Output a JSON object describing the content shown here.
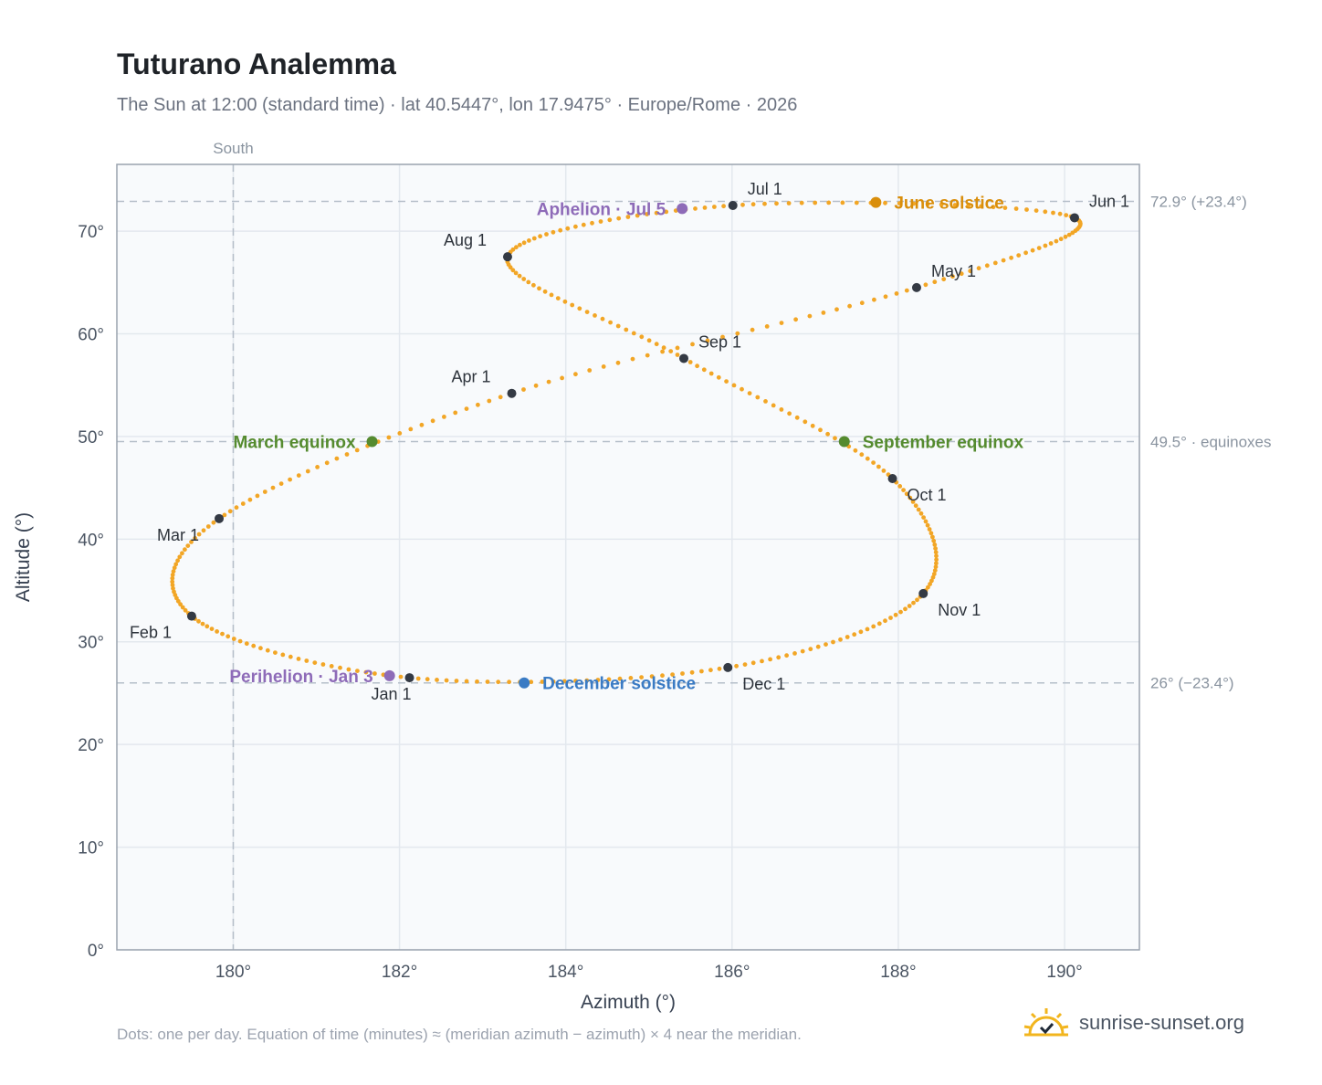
{
  "title": "Tuturano Analemma",
  "subtitle": "The Sun at 12:00 (standard time) · lat 40.5447°, lon 17.9475° · Europe/Rome · 2026",
  "footnote": "Dots: one per day. Equation of time (minutes) ≈ (meridian azimuth − azimuth) × 4 near the meridian.",
  "brand": {
    "name": "sunrise-sunset.org",
    "icon": "sun-horizon-icon"
  },
  "colors": {
    "path": "#f2a626",
    "month_marker": "#343a44",
    "solstice_june": "#d98e0b",
    "solstice_december": "#3a7bc4",
    "equinox": "#558b2f",
    "apsis": "#8e6bb8",
    "guide_line": "#b5bec9",
    "plot_background": "#f8fafc",
    "axis_frame": "#9aa3ae"
  },
  "chart_data": {
    "type": "scatter",
    "xlabel": "Azimuth (°)",
    "ylabel": "Altitude (°)",
    "xlim": [
      178.6,
      190.9
    ],
    "ylim": [
      0,
      76.5
    ],
    "x_ticks": [
      "180°",
      "182°",
      "184°",
      "186°",
      "188°",
      "190°"
    ],
    "x_tick_values": [
      180,
      182,
      184,
      186,
      188,
      190
    ],
    "y_ticks": [
      "0°",
      "10°",
      "20°",
      "30°",
      "40°",
      "50°",
      "60°",
      "70°"
    ],
    "y_tick_values": [
      0,
      10,
      20,
      30,
      40,
      50,
      60,
      70
    ],
    "grid": true,
    "meridian": {
      "label": "South",
      "azimuth": 180
    },
    "reference_lines": [
      {
        "altitude": 72.9,
        "label": "72.9° (+23.4°)"
      },
      {
        "altitude": 49.5,
        "label": "49.5° · equinoxes"
      },
      {
        "altitude": 26.0,
        "label": "26° (−23.4°)"
      }
    ],
    "path_anchors": [
      {
        "x": 182.12,
        "y": 26.5
      },
      {
        "x": 179.5,
        "y": 32.5
      },
      {
        "x": 179.83,
        "y": 42.0
      },
      {
        "x": 183.35,
        "y": 54.2
      },
      {
        "x": 188.22,
        "y": 64.5
      },
      {
        "x": 190.12,
        "y": 71.3
      },
      {
        "x": 186.01,
        "y": 72.5
      },
      {
        "x": 183.3,
        "y": 67.5
      },
      {
        "x": 185.42,
        "y": 57.6
      },
      {
        "x": 187.93,
        "y": 45.9
      },
      {
        "x": 188.3,
        "y": 34.7
      },
      {
        "x": 185.95,
        "y": 27.5
      }
    ],
    "month_markers": [
      {
        "label": "Jan 1",
        "x": 182.12,
        "y": 26.5
      },
      {
        "label": "Feb 1",
        "x": 179.5,
        "y": 32.5
      },
      {
        "label": "Mar 1",
        "x": 179.83,
        "y": 42.0
      },
      {
        "label": "Apr 1",
        "x": 183.35,
        "y": 54.2
      },
      {
        "label": "May 1",
        "x": 188.22,
        "y": 64.5
      },
      {
        "label": "Jun 1",
        "x": 190.12,
        "y": 71.3
      },
      {
        "label": "Jul 1",
        "x": 186.01,
        "y": 72.5
      },
      {
        "label": "Aug 1",
        "x": 183.3,
        "y": 67.5
      },
      {
        "label": "Sep 1",
        "x": 185.42,
        "y": 57.6
      },
      {
        "label": "Oct 1",
        "x": 187.93,
        "y": 45.9
      },
      {
        "label": "Nov 1",
        "x": 188.3,
        "y": 34.7
      },
      {
        "label": "Dec 1",
        "x": 185.95,
        "y": 27.5
      }
    ],
    "events": [
      {
        "label": "June solstice",
        "x": 187.73,
        "y": 72.8,
        "kind": "solstice_june"
      },
      {
        "label": "December solstice",
        "x": 183.5,
        "y": 26.0,
        "kind": "solstice_december"
      },
      {
        "label": "March equinox",
        "x": 181.67,
        "y": 49.5,
        "kind": "equinox"
      },
      {
        "label": "September equinox",
        "x": 187.35,
        "y": 49.5,
        "kind": "equinox"
      },
      {
        "label": "Aphelion · Jul 5",
        "x": 185.4,
        "y": 72.2,
        "kind": "apsis"
      },
      {
        "label": "Perihelion · Jan 3",
        "x": 181.88,
        "y": 26.7,
        "kind": "apsis"
      }
    ]
  }
}
